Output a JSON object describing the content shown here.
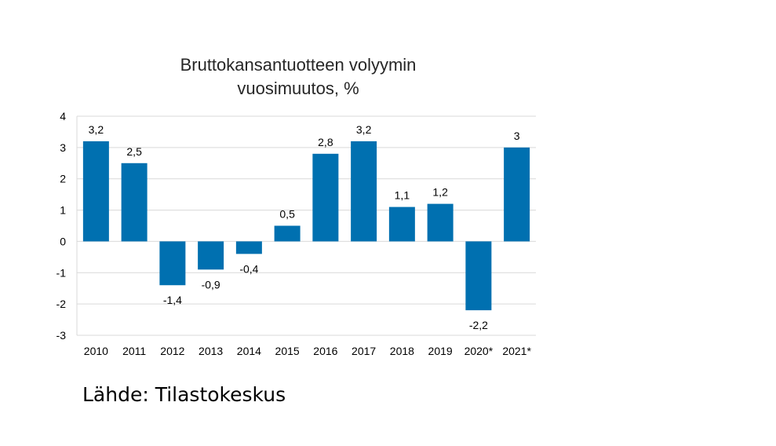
{
  "chart_data": {
    "type": "bar",
    "title_lines": [
      "Bruttokansantuotteen volyymin",
      "vuosimuutos, %"
    ],
    "categories": [
      "2010",
      "2011",
      "2012",
      "2013",
      "2014",
      "2015",
      "2016",
      "2017",
      "2018",
      "2019",
      "2020*",
      "2021*"
    ],
    "values": [
      3.2,
      2.5,
      -1.4,
      -0.9,
      -0.4,
      0.5,
      2.8,
      3.2,
      1.1,
      1.2,
      -2.2,
      3
    ],
    "data_labels": [
      "3,2",
      "2,5",
      "-1,4",
      "-0,9",
      "-0,4",
      "0,5",
      "2,8",
      "3,2",
      "1,1",
      "1,2",
      "-2,2",
      "3"
    ],
    "y_ticks": [
      4,
      3,
      2,
      1,
      0,
      -1,
      -2,
      -3
    ],
    "y_tick_labels": [
      "4",
      "3",
      "2",
      "1",
      "0",
      "-1",
      "-2",
      "-3"
    ],
    "ylim": [
      -3,
      4
    ],
    "grid": true,
    "bar_color": "#0070B0",
    "grid_color": "#D9D9D9"
  },
  "source": "Lähde: Tilastokeskus"
}
